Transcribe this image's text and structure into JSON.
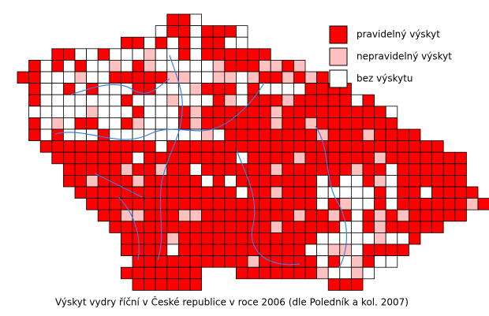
{
  "legend": [
    {
      "label": "pravidelný výskyt",
      "color": "#ff0000"
    },
    {
      "label": "nepravidelný výskyt",
      "color": "#ffc0c0"
    },
    {
      "label": "bez výskytu",
      "color": "#ffffff"
    }
  ],
  "caption": "Výskyt vydry říční v České republice v roce 2006 (dle Poledník a kol. 2007)"
}
